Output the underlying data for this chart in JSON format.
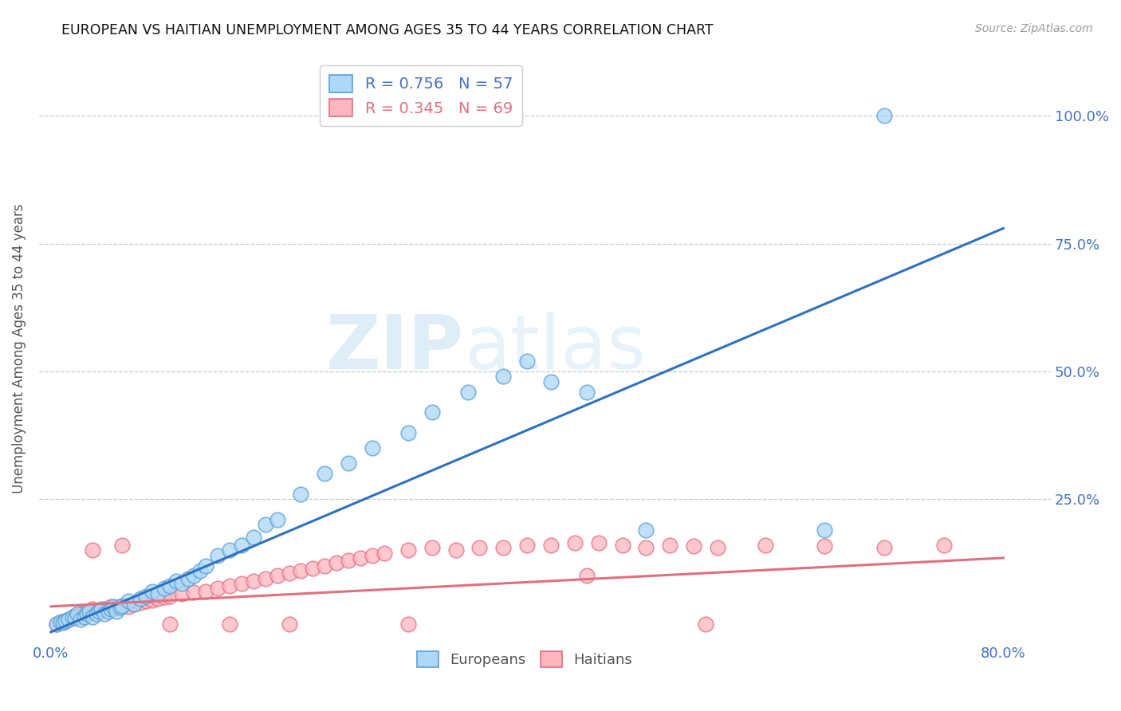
{
  "title": "EUROPEAN VS HAITIAN UNEMPLOYMENT AMONG AGES 35 TO 44 YEARS CORRELATION CHART",
  "source": "Source: ZipAtlas.com",
  "ylabel": "Unemployment Among Ages 35 to 44 years",
  "xlim": [
    -0.01,
    0.84
  ],
  "ylim": [
    -0.03,
    1.12
  ],
  "xticks": [
    0.0,
    0.2,
    0.4,
    0.6,
    0.8
  ],
  "xticklabels": [
    "0.0%",
    "",
    "",
    "",
    "80.0%"
  ],
  "yticks": [
    0.0,
    0.25,
    0.5,
    0.75,
    1.0
  ],
  "yticklabels": [
    "",
    "25.0%",
    "50.0%",
    "75.0%",
    "100.0%"
  ],
  "european_R": 0.756,
  "european_N": 57,
  "haitian_R": 0.345,
  "haitian_N": 69,
  "european_color_face": "#add8f7",
  "european_color_edge": "#5a9fd4",
  "haitian_color_face": "#ffb6c1",
  "haitian_color_edge": "#e07080",
  "european_line_color": "#3070c0",
  "haitian_line_color": "#e07080",
  "eu_line_x0": 0.0,
  "eu_line_y0": -0.01,
  "eu_line_x1": 0.8,
  "eu_line_y1": 0.78,
  "ha_line_x0": 0.0,
  "ha_line_y0": 0.04,
  "ha_line_x1": 0.8,
  "ha_line_y1": 0.135,
  "european_scatter_x": [
    0.005,
    0.008,
    0.01,
    0.012,
    0.015,
    0.018,
    0.02,
    0.022,
    0.025,
    0.028,
    0.03,
    0.032,
    0.035,
    0.038,
    0.04,
    0.042,
    0.045,
    0.048,
    0.05,
    0.052,
    0.055,
    0.058,
    0.06,
    0.065,
    0.07,
    0.075,
    0.08,
    0.085,
    0.09,
    0.095,
    0.1,
    0.105,
    0.11,
    0.115,
    0.12,
    0.125,
    0.13,
    0.14,
    0.15,
    0.16,
    0.17,
    0.18,
    0.19,
    0.21,
    0.23,
    0.25,
    0.27,
    0.3,
    0.32,
    0.35,
    0.38,
    0.4,
    0.42,
    0.45,
    0.5,
    0.65,
    0.7
  ],
  "european_scatter_y": [
    0.005,
    0.01,
    0.008,
    0.012,
    0.015,
    0.02,
    0.018,
    0.025,
    0.015,
    0.02,
    0.025,
    0.03,
    0.02,
    0.025,
    0.03,
    0.035,
    0.025,
    0.03,
    0.035,
    0.04,
    0.03,
    0.038,
    0.042,
    0.05,
    0.045,
    0.055,
    0.06,
    0.07,
    0.065,
    0.075,
    0.08,
    0.09,
    0.085,
    0.095,
    0.1,
    0.11,
    0.12,
    0.14,
    0.15,
    0.16,
    0.175,
    0.2,
    0.21,
    0.26,
    0.3,
    0.32,
    0.35,
    0.38,
    0.42,
    0.46,
    0.49,
    0.52,
    0.48,
    0.46,
    0.19,
    0.19,
    1.0
  ],
  "haitian_scatter_x": [
    0.005,
    0.008,
    0.01,
    0.012,
    0.015,
    0.018,
    0.02,
    0.022,
    0.025,
    0.028,
    0.03,
    0.035,
    0.04,
    0.045,
    0.05,
    0.055,
    0.06,
    0.065,
    0.07,
    0.075,
    0.08,
    0.085,
    0.09,
    0.095,
    0.1,
    0.11,
    0.12,
    0.13,
    0.14,
    0.15,
    0.16,
    0.17,
    0.18,
    0.19,
    0.2,
    0.21,
    0.22,
    0.23,
    0.24,
    0.25,
    0.26,
    0.27,
    0.28,
    0.3,
    0.32,
    0.34,
    0.36,
    0.38,
    0.4,
    0.42,
    0.44,
    0.46,
    0.48,
    0.5,
    0.52,
    0.54,
    0.56,
    0.6,
    0.65,
    0.7,
    0.75,
    0.035,
    0.06,
    0.1,
    0.15,
    0.2,
    0.3,
    0.45,
    0.55
  ],
  "haitian_scatter_y": [
    0.005,
    0.008,
    0.01,
    0.012,
    0.015,
    0.018,
    0.02,
    0.022,
    0.025,
    0.028,
    0.03,
    0.035,
    0.03,
    0.035,
    0.04,
    0.038,
    0.042,
    0.04,
    0.045,
    0.048,
    0.05,
    0.052,
    0.055,
    0.058,
    0.06,
    0.065,
    0.068,
    0.07,
    0.075,
    0.08,
    0.085,
    0.09,
    0.095,
    0.1,
    0.105,
    0.11,
    0.115,
    0.12,
    0.125,
    0.13,
    0.135,
    0.14,
    0.145,
    0.15,
    0.155,
    0.15,
    0.155,
    0.155,
    0.16,
    0.16,
    0.165,
    0.165,
    0.16,
    0.155,
    0.16,
    0.158,
    0.155,
    0.16,
    0.158,
    0.155,
    0.16,
    0.15,
    0.16,
    0.005,
    0.005,
    0.005,
    0.005,
    0.1,
    0.005
  ]
}
